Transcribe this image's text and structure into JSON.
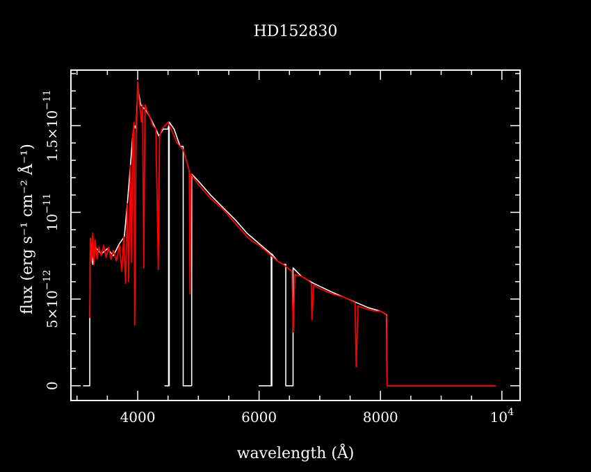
{
  "chart_data": {
    "type": "line",
    "title": "HD152830",
    "xlabel": "wavelength (Å)",
    "ylabel": "flux (erg s⁻¹ cm⁻² Å⁻¹)",
    "xlim": [
      2900,
      10300
    ],
    "ylim": [
      -8.5e-13,
      1.82e-11
    ],
    "x_ticks": [
      {
        "value": 4000,
        "label": "4000"
      },
      {
        "value": 6000,
        "label": "6000"
      },
      {
        "value": 8000,
        "label": "8000"
      },
      {
        "value": 10000,
        "label": "10",
        "exponent": "4"
      }
    ],
    "y_ticks": [
      {
        "value": 0,
        "label": "0"
      },
      {
        "value": 5e-12,
        "label": "5×10",
        "exponent": "−12"
      },
      {
        "value": 1e-11,
        "label": "10",
        "exponent": "−11"
      },
      {
        "value": 1.5e-11,
        "label": "1.5×10",
        "exponent": "−11"
      }
    ],
    "grid": false,
    "colors": {
      "background": "#000000",
      "axes": "#ffffff",
      "model": "#ffffff",
      "observed": "#ff0000"
    },
    "series": [
      {
        "color": "#ffffff",
        "points": [
          [
            3100,
            0
          ],
          [
            3210,
            0
          ],
          [
            3210,
            3.9e-12
          ],
          [
            3220,
            8.5e-12
          ],
          [
            3260,
            7e-12
          ],
          [
            3300,
            8e-12
          ],
          [
            3400,
            7.6e-12
          ],
          [
            3500,
            7.9e-12
          ],
          [
            3600,
            7.5e-12
          ],
          [
            3700,
            8.2e-12
          ],
          [
            3780,
            8.6e-12
          ],
          [
            3830,
            1.05e-11
          ],
          [
            3880,
            1.27e-11
          ],
          [
            3920,
            1.45e-11
          ],
          [
            3950,
            1.5e-11
          ],
          [
            3975,
            1.48e-11
          ],
          [
            4000,
            1.72e-11
          ],
          [
            4050,
            1.62e-11
          ],
          [
            4100,
            1.6e-11
          ],
          [
            4150,
            1.58e-11
          ],
          [
            4200,
            1.55e-11
          ],
          [
            4300,
            1.48e-11
          ],
          [
            4350,
            1.44e-11
          ],
          [
            4420,
            1.48e-11
          ],
          [
            4500,
            1.48e-11
          ],
          [
            4510,
            1.5e-11
          ],
          [
            4510,
            0
          ],
          [
            4450,
            0
          ],
          [
            4450,
            0
          ],
          [
            4520,
            0
          ],
          [
            4520,
            1.52e-11
          ],
          [
            4600,
            1.48e-11
          ],
          [
            4700,
            1.38e-11
          ],
          [
            4750,
            1.38e-11
          ],
          [
            4750,
            0
          ],
          [
            4890,
            0
          ],
          [
            4890,
            1.22e-11
          ],
          [
            5000,
            1.18e-11
          ],
          [
            5200,
            1.1e-11
          ],
          [
            5400,
            1.03e-11
          ],
          [
            5600,
            9.6e-12
          ],
          [
            5800,
            8.8e-12
          ],
          [
            6000,
            8.2e-12
          ],
          [
            6100,
            7.9e-12
          ],
          [
            6200,
            7.6e-12
          ],
          [
            6200,
            0
          ],
          [
            6000,
            0
          ],
          [
            6000,
            0
          ],
          [
            6210,
            0
          ],
          [
            6210,
            7.6e-12
          ],
          [
            6300,
            7.2e-12
          ],
          [
            6400,
            7e-12
          ],
          [
            6440,
            7e-12
          ],
          [
            6440,
            0
          ],
          [
            6560,
            0
          ],
          [
            6560,
            6.8e-12
          ],
          [
            6700,
            6.3e-12
          ],
          [
            6900,
            5.9e-12
          ],
          [
            7200,
            5.4e-12
          ],
          [
            7400,
            5.1e-12
          ],
          [
            7600,
            4.8e-12
          ],
          [
            7800,
            4.5e-12
          ],
          [
            8000,
            4.3e-12
          ],
          [
            8100,
            4.1e-12
          ],
          [
            8110,
            0
          ],
          [
            9900,
            0
          ]
        ]
      },
      {
        "color": "#ff0000",
        "points": [
          [
            3210,
            3.9e-12
          ],
          [
            3220,
            8.5e-12
          ],
          [
            3240,
            7.2e-12
          ],
          [
            3260,
            8.8e-12
          ],
          [
            3280,
            7e-12
          ],
          [
            3300,
            8.4e-12
          ],
          [
            3330,
            7.3e-12
          ],
          [
            3360,
            8e-12
          ],
          [
            3400,
            7.5e-12
          ],
          [
            3440,
            8.1e-12
          ],
          [
            3480,
            7.4e-12
          ],
          [
            3520,
            8e-12
          ],
          [
            3560,
            7.3e-12
          ],
          [
            3600,
            7.8e-12
          ],
          [
            3650,
            7.2e-12
          ],
          [
            3700,
            8.1e-12
          ],
          [
            3740,
            6.6e-12
          ],
          [
            3770,
            8.6e-12
          ],
          [
            3800,
            5.9e-12
          ],
          [
            3830,
            1.05e-11
          ],
          [
            3850,
            6e-12
          ],
          [
            3880,
            1.27e-11
          ],
          [
            3900,
            7.1e-12
          ],
          [
            3920,
            1.45e-11
          ],
          [
            3940,
            1.52e-11
          ],
          [
            3950,
            3.5e-12
          ],
          [
            3975,
            1.45e-11
          ],
          [
            3990,
            1.6e-11
          ],
          [
            4000,
            1.75e-11
          ],
          [
            4020,
            1.66e-11
          ],
          [
            4040,
            1.6e-11
          ],
          [
            4060,
            1.52e-11
          ],
          [
            4080,
            1.62e-11
          ],
          [
            4100,
            6.8e-12
          ],
          [
            4120,
            1.62e-11
          ],
          [
            4160,
            1.58e-11
          ],
          [
            4200,
            1.55e-11
          ],
          [
            4250,
            1.5e-11
          ],
          [
            4300,
            1.48e-11
          ],
          [
            4340,
            6.7e-12
          ],
          [
            4360,
            1.44e-11
          ],
          [
            4400,
            1.48e-11
          ],
          [
            4450,
            1.5e-11
          ],
          [
            4500,
            1.52e-11
          ],
          [
            4550,
            1.48e-11
          ],
          [
            4600,
            1.44e-11
          ],
          [
            4650,
            1.4e-11
          ],
          [
            4700,
            1.38e-11
          ],
          [
            4750,
            1.36e-11
          ],
          [
            4800,
            1.3e-11
          ],
          [
            4850,
            1.24e-11
          ],
          [
            4861,
            5.3e-12
          ],
          [
            4880,
            1.22e-11
          ],
          [
            4920,
            1.2e-11
          ],
          [
            5000,
            1.16e-11
          ],
          [
            5100,
            1.12e-11
          ],
          [
            5200,
            1.08e-11
          ],
          [
            5300,
            1.05e-11
          ],
          [
            5400,
            1.02e-11
          ],
          [
            5500,
            9.8e-12
          ],
          [
            5600,
            9.4e-12
          ],
          [
            5700,
            9e-12
          ],
          [
            5800,
            8.6e-12
          ],
          [
            5900,
            8.3e-12
          ],
          [
            6000,
            8.1e-12
          ],
          [
            6100,
            7.8e-12
          ],
          [
            6200,
            7.5e-12
          ],
          [
            6300,
            7.2e-12
          ],
          [
            6400,
            7e-12
          ],
          [
            6500,
            6.7e-12
          ],
          [
            6540,
            6.6e-12
          ],
          [
            6563,
            3.1e-12
          ],
          [
            6590,
            6.4e-12
          ],
          [
            6700,
            6.3e-12
          ],
          [
            6800,
            6.1e-12
          ],
          [
            6860,
            5.9e-12
          ],
          [
            6870,
            3.8e-12
          ],
          [
            6900,
            5.8e-12
          ],
          [
            7000,
            5.6e-12
          ],
          [
            7200,
            5.3e-12
          ],
          [
            7400,
            5.1e-12
          ],
          [
            7580,
            4.8e-12
          ],
          [
            7600,
            1.1e-12
          ],
          [
            7630,
            4.6e-12
          ],
          [
            7700,
            4.5e-12
          ],
          [
            7800,
            4.4e-12
          ],
          [
            7900,
            4.3e-12
          ],
          [
            8000,
            4.3e-12
          ],
          [
            8090,
            4.1e-12
          ],
          [
            8105,
            3.9e-12
          ],
          [
            8110,
            0
          ],
          [
            9900,
            0
          ]
        ]
      }
    ]
  }
}
